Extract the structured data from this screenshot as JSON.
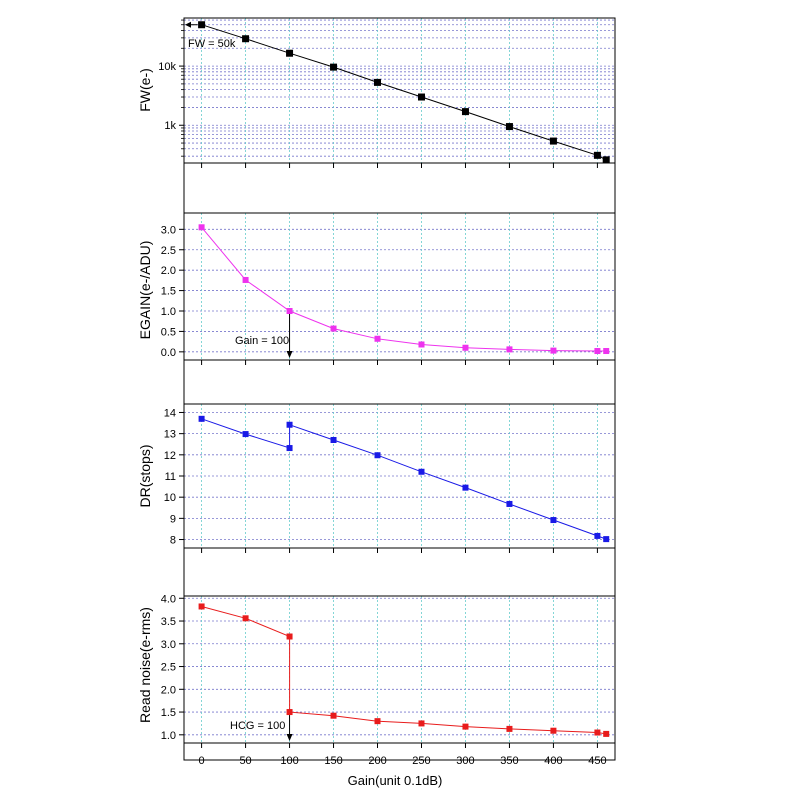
{
  "chart_data": [
    {
      "type": "scatter",
      "panel": "fw",
      "ylabel": "FW(e-)",
      "yscale": "log",
      "ylim": [
        230,
        65000
      ],
      "yticks": [
        1000,
        10000
      ],
      "ytick_labels": [
        "1k",
        "10k"
      ],
      "color": "#000000",
      "x": [
        0,
        50,
        100,
        150,
        200,
        250,
        300,
        350,
        400,
        450,
        460
      ],
      "y": [
        50000,
        29000,
        16500,
        9600,
        5300,
        3000,
        1700,
        950,
        540,
        310,
        260
      ],
      "annotation": "FW = 50k",
      "grid": true
    },
    {
      "type": "line",
      "panel": "egain",
      "ylabel": "EGAIN(e-/ADU)",
      "ylim": [
        -0.2,
        3.4
      ],
      "yticks": [
        0.0,
        0.5,
        1.0,
        1.5,
        2.0,
        2.5,
        3.0
      ],
      "ytick_labels": [
        "0.0",
        "0.5",
        "1.0",
        "1.5",
        "2.0",
        "2.5",
        "3.0"
      ],
      "color": "#ee33ee",
      "x": [
        0,
        50,
        100,
        150,
        200,
        250,
        300,
        350,
        400,
        450,
        460
      ],
      "y": [
        3.05,
        1.76,
        1.0,
        0.57,
        0.32,
        0.18,
        0.1,
        0.06,
        0.03,
        0.02,
        0.02
      ],
      "annotation": "Gain = 100",
      "grid": true
    },
    {
      "type": "line",
      "panel": "dr",
      "ylabel": "DR(stops)",
      "ylim": [
        7.6,
        14.4
      ],
      "yticks": [
        8,
        9,
        10,
        11,
        12,
        13,
        14
      ],
      "ytick_labels": [
        "8",
        "9",
        "10",
        "11",
        "12",
        "13",
        "14"
      ],
      "color": "#1a1ae6",
      "x": [
        0,
        50,
        100,
        100,
        150,
        200,
        250,
        300,
        350,
        400,
        450,
        460
      ],
      "y": [
        13.7,
        12.98,
        12.32,
        13.42,
        12.7,
        11.98,
        11.2,
        10.45,
        9.68,
        8.92,
        8.17,
        8.02
      ],
      "grid": true
    },
    {
      "type": "line",
      "panel": "rn",
      "ylabel": "Read noise(e-rms)",
      "xlabel": "Gain(unit 0.1dB)",
      "ylim": [
        0.82,
        4.05
      ],
      "yticks": [
        1.0,
        1.5,
        2.0,
        2.5,
        3.0,
        3.5,
        4.0
      ],
      "ytick_labels": [
        "1.0",
        "1.5",
        "2.0",
        "2.5",
        "3.0",
        "3.5",
        "4.0"
      ],
      "color": "#e81c1c",
      "x": [
        0,
        50,
        100,
        100,
        150,
        200,
        250,
        300,
        350,
        400,
        450,
        460
      ],
      "y": [
        3.82,
        3.56,
        3.16,
        1.5,
        1.42,
        1.3,
        1.25,
        1.18,
        1.13,
        1.09,
        1.05,
        1.02
      ],
      "annotation": "HCG = 100",
      "grid": true
    }
  ],
  "x_axis": {
    "xlim": [
      -20,
      470
    ],
    "ticks": [
      0,
      50,
      100,
      150,
      200,
      250,
      300,
      350,
      400,
      450
    ],
    "tick_labels": [
      "0",
      "50",
      "100",
      "150",
      "200",
      "250",
      "300",
      "350",
      "400",
      "450"
    ],
    "label": "Gain(unit 0.1dB)"
  },
  "colors": {
    "grid_horizontal": "#7777cc",
    "grid_vertical": "#66cccc",
    "axis": "#000000"
  }
}
